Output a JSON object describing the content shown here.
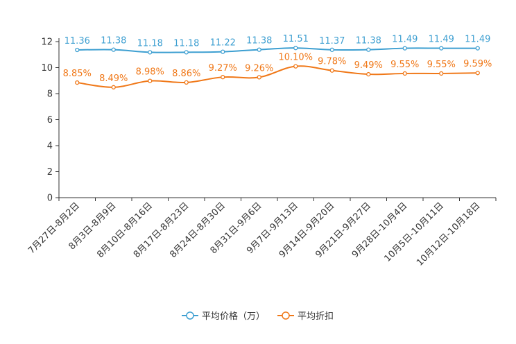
{
  "chart_data": {
    "type": "line",
    "categories": [
      "7月27日-8月2日",
      "8月3日-8月9日",
      "8月10日-8月16日",
      "8月17日-8月23日",
      "8月24日-8月30日",
      "8月31日-9月6日",
      "9月7日-9月13日",
      "9月14日-9月20日",
      "9月21日-9月27日",
      "9月28日-10月4日",
      "10月5日-10月11日",
      "10月12日-10月18日"
    ],
    "ylim": [
      0,
      12
    ],
    "yticks": [
      0,
      2,
      4,
      6,
      8,
      10,
      12
    ],
    "grid": false,
    "legend_position": "bottom-center",
    "series": [
      {
        "name": "平均价格（万）",
        "color": "#3d9fd1",
        "values": [
          11.36,
          11.38,
          11.18,
          11.18,
          11.22,
          11.38,
          11.51,
          11.37,
          11.38,
          11.49,
          11.49,
          11.49
        ],
        "labels": [
          "11.36",
          "11.38",
          "11.18",
          "11.18",
          "11.22",
          "11.38",
          "11.51",
          "11.37",
          "11.38",
          "11.49",
          "11.49",
          "11.49"
        ]
      },
      {
        "name": "平均折扣",
        "color": "#f07818",
        "values": [
          8.85,
          8.49,
          8.98,
          8.86,
          9.27,
          9.26,
          10.1,
          9.78,
          9.49,
          9.55,
          9.55,
          9.59
        ],
        "labels": [
          "8.85%",
          "8.49%",
          "8.98%",
          "8.86%",
          "9.27%",
          "9.26%",
          "10.10%",
          "9.78%",
          "9.49%",
          "9.55%",
          "9.55%",
          "9.59%"
        ]
      }
    ]
  }
}
